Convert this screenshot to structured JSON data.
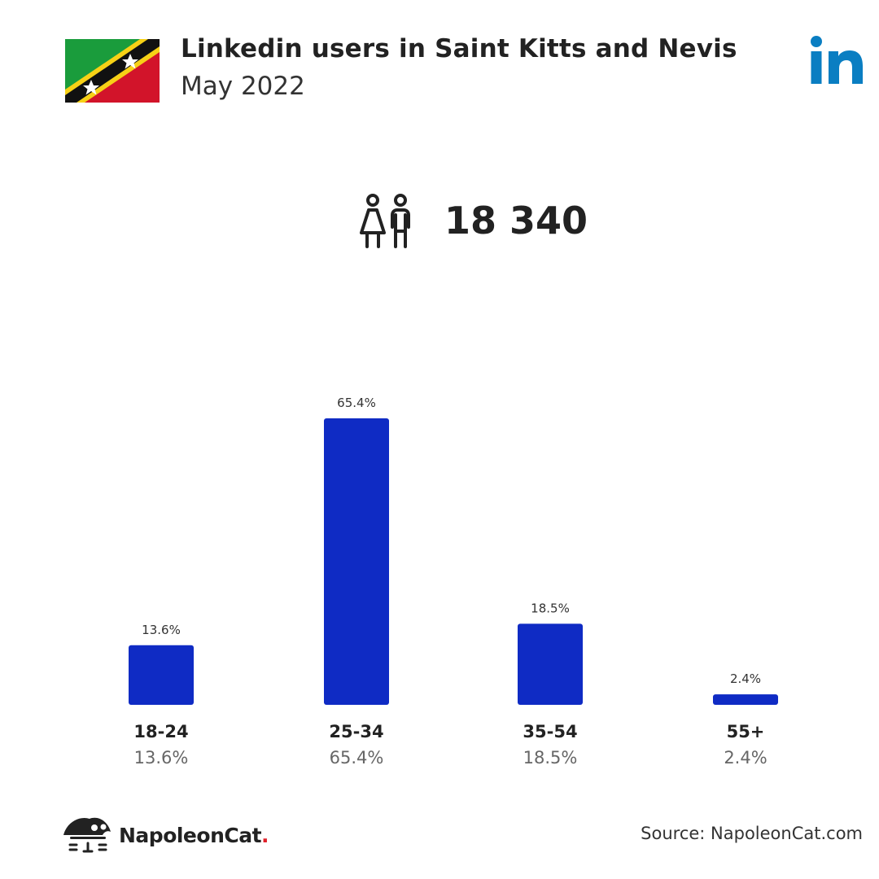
{
  "header": {
    "title": "Linkedin users in Saint Kitts and Nevis",
    "subtitle": "May 2022"
  },
  "total": {
    "value": "18 340",
    "icon": "people-icon"
  },
  "colors": {
    "bar": "#0f2bc4",
    "linkedin": "#0a7ec2",
    "accent_dot": "#e0202a"
  },
  "chart_data": {
    "type": "bar",
    "categories": [
      "18-24",
      "25-34",
      "35-54",
      "55+"
    ],
    "values": [
      13.6,
      65.4,
      18.5,
      2.4
    ],
    "data_labels": [
      "13.6%",
      "65.4%",
      "18.5%",
      "2.4%"
    ],
    "title": "",
    "xlabel": "",
    "ylabel": "",
    "ylim": [
      0,
      65.4
    ],
    "grid": false,
    "legend": "none"
  },
  "footer": {
    "brand_name": "NapoleonCat",
    "brand_dot": ".",
    "source": "Source: NapoleonCat.com"
  }
}
